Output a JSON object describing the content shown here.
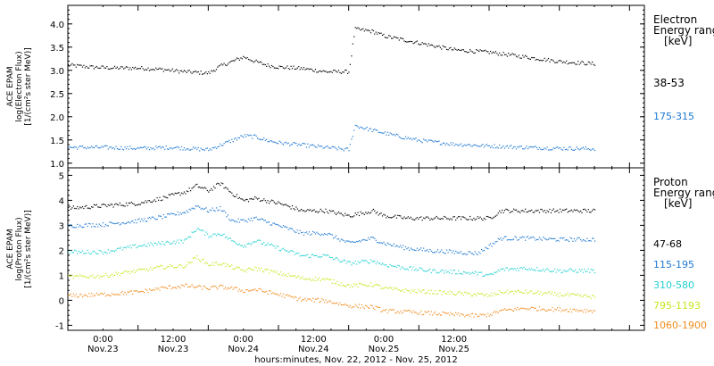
{
  "chart_data": [
    {
      "type": "scatter",
      "panel": "electron",
      "ylabel_lines": [
        "ACE EPAM",
        "log(Electron Flux)",
        "[1/(cm²s ster MeV)]"
      ],
      "ylim": [
        0.9,
        4.4
      ],
      "yticks": [
        "1.0",
        "1.5",
        "2.0",
        "2.5",
        "3.0",
        "3.5",
        "4.0"
      ],
      "legend_title": [
        "Electron",
        "Energy ranges",
        "[keV]"
      ],
      "series": [
        {
          "name": "38-53",
          "color": "#000000",
          "x_hours": [
            0,
            4,
            8,
            12,
            16,
            20,
            24,
            26,
            28,
            30,
            32,
            34,
            36,
            40,
            44,
            48,
            49,
            52,
            54,
            60,
            66,
            72,
            78,
            84,
            90
          ],
          "y": [
            3.12,
            3.08,
            3.06,
            3.06,
            3.03,
            2.98,
            2.95,
            3.1,
            3.2,
            3.3,
            3.2,
            3.12,
            3.08,
            3.05,
            2.98,
            2.98,
            3.9,
            3.85,
            3.75,
            3.6,
            3.45,
            3.4,
            3.3,
            3.2,
            3.15
          ]
        },
        {
          "name": "175-315",
          "color": "#1e78d2",
          "x_hours": [
            0,
            6,
            12,
            18,
            24,
            26,
            28,
            30,
            32,
            34,
            36,
            40,
            44,
            48,
            49,
            52,
            56,
            60,
            66,
            72,
            78,
            84,
            90
          ],
          "y": [
            1.35,
            1.35,
            1.33,
            1.35,
            1.3,
            1.4,
            1.5,
            1.6,
            1.58,
            1.5,
            1.45,
            1.4,
            1.35,
            1.3,
            1.82,
            1.72,
            1.6,
            1.5,
            1.42,
            1.38,
            1.35,
            1.33,
            1.32
          ]
        }
      ]
    },
    {
      "type": "scatter",
      "panel": "proton",
      "ylabel_lines": [
        "ACE EPAM",
        "log(Proton Flux)",
        "[1/(cm²s ster MeV)]"
      ],
      "ylim": [
        -1.2,
        5.3
      ],
      "yticks": [
        "-1",
        "0",
        "1",
        "2",
        "3",
        "4",
        "5"
      ],
      "legend_title": [
        "Proton",
        "Energy ranges",
        "[keV]"
      ],
      "xlabel": "hours:minutes, Nov. 22, 2012 - Nov. 25, 2012",
      "x_tick_labels": [
        [
          "0:00",
          "Nov.23"
        ],
        [
          "12:00",
          "Nov.23"
        ],
        [
          "0:00",
          "Nov.24"
        ],
        [
          "12:00",
          "Nov.24"
        ],
        [
          "0:00",
          "Nov.25"
        ],
        [
          "12:00",
          "Nov.25"
        ]
      ],
      "series": [
        {
          "name": "47-68",
          "color": "#000000",
          "x_hours": [
            0,
            6,
            12,
            16,
            20,
            22,
            24,
            26,
            28,
            30,
            32,
            36,
            40,
            44,
            48,
            52,
            54,
            58,
            62,
            66,
            70,
            72,
            74,
            78,
            84,
            90
          ],
          "y": [
            3.7,
            3.8,
            3.9,
            4.1,
            4.35,
            4.6,
            4.4,
            4.7,
            4.3,
            4.0,
            4.1,
            3.9,
            3.6,
            3.6,
            3.4,
            3.6,
            3.4,
            3.3,
            3.3,
            3.3,
            3.3,
            3.3,
            3.6,
            3.6,
            3.6,
            3.6
          ]
        },
        {
          "name": "115-195",
          "color": "#1e78d2",
          "x_hours": [
            0,
            6,
            12,
            16,
            20,
            22,
            24,
            26,
            28,
            30,
            32,
            36,
            40,
            44,
            48,
            52,
            54,
            58,
            62,
            66,
            70,
            72,
            74,
            78,
            84,
            90
          ],
          "y": [
            3.0,
            3.05,
            3.2,
            3.35,
            3.55,
            3.8,
            3.6,
            3.7,
            3.2,
            3.2,
            3.3,
            3.0,
            2.7,
            2.7,
            2.3,
            2.5,
            2.3,
            2.1,
            2.0,
            1.95,
            1.9,
            2.2,
            2.5,
            2.5,
            2.45,
            2.45
          ]
        },
        {
          "name": "310-580",
          "color": "#22cfcf",
          "x_hours": [
            0,
            6,
            12,
            16,
            20,
            22,
            24,
            26,
            28,
            30,
            32,
            36,
            40,
            44,
            48,
            52,
            54,
            58,
            62,
            66,
            70,
            72,
            74,
            78,
            84,
            90
          ],
          "y": [
            1.95,
            1.95,
            2.2,
            2.3,
            2.4,
            2.9,
            2.6,
            2.7,
            2.4,
            2.2,
            2.4,
            2.1,
            1.8,
            1.8,
            1.5,
            1.6,
            1.45,
            1.3,
            1.2,
            1.15,
            1.1,
            1.0,
            1.25,
            1.3,
            1.2,
            1.2
          ]
        },
        {
          "name": "795-1193",
          "color": "#c8e61e",
          "x_hours": [
            0,
            6,
            12,
            16,
            20,
            22,
            24,
            26,
            28,
            30,
            32,
            36,
            40,
            44,
            48,
            52,
            54,
            58,
            62,
            66,
            70,
            72,
            74,
            78,
            84,
            90
          ],
          "y": [
            0.95,
            1.0,
            1.2,
            1.35,
            1.4,
            1.75,
            1.45,
            1.5,
            1.35,
            1.2,
            1.3,
            1.1,
            0.9,
            0.85,
            0.6,
            0.65,
            0.5,
            0.4,
            0.35,
            0.3,
            0.25,
            0.2,
            0.35,
            0.35,
            0.25,
            0.15
          ]
        },
        {
          "name": "1060-1900",
          "color": "#f08c1e",
          "x_hours": [
            0,
            6,
            12,
            16,
            20,
            22,
            24,
            26,
            28,
            30,
            32,
            36,
            40,
            44,
            48,
            52,
            54,
            58,
            62,
            66,
            70,
            72,
            74,
            78,
            84,
            90
          ],
          "y": [
            0.2,
            0.25,
            0.35,
            0.5,
            0.6,
            0.55,
            0.5,
            0.55,
            0.5,
            0.4,
            0.45,
            0.25,
            0.05,
            0.0,
            -0.2,
            -0.25,
            -0.4,
            -0.45,
            -0.5,
            -0.55,
            -0.6,
            -0.55,
            -0.4,
            -0.3,
            -0.35,
            -0.4
          ]
        }
      ]
    }
  ]
}
